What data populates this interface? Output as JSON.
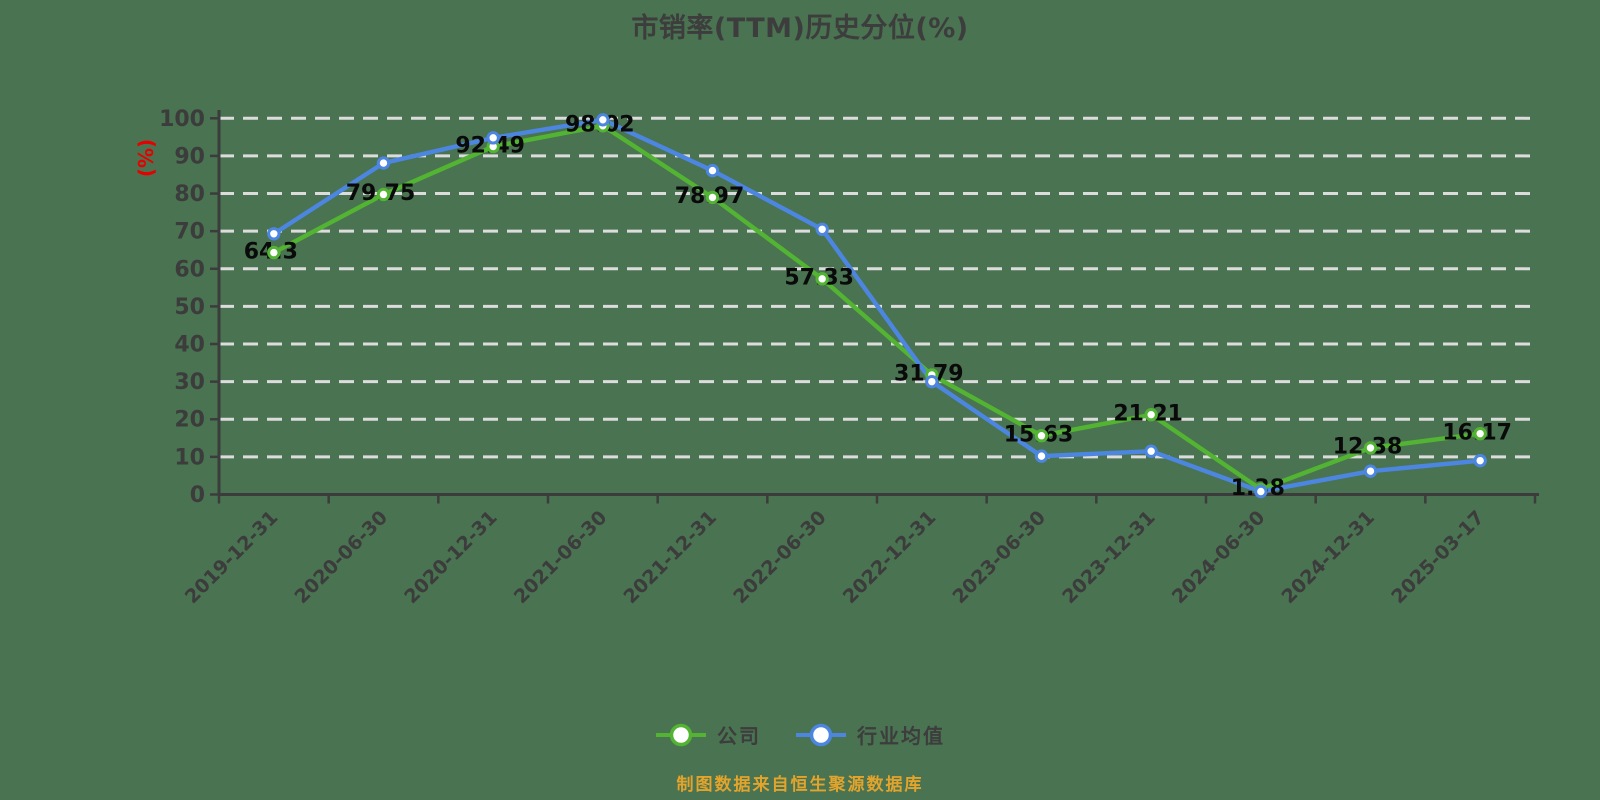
{
  "page": {
    "background_color": "#497351"
  },
  "chart_data": {
    "type": "line",
    "title": "市销率(TTM)历史分位(%)",
    "ylabel": "(%)",
    "ylabel_color": "#e60000",
    "xlabel": "",
    "ylim": [
      0,
      100
    ],
    "ytick_step": 10,
    "grid": "horizontal-white-dashed",
    "grid_color": "#dcdcdc",
    "axis_color": "#3c3c3c",
    "legend_position": "bottom",
    "marker_fill": "#ffffff",
    "categories": [
      "2019-12-31",
      "2020-06-30",
      "2020-12-31",
      "2021-06-30",
      "2021-12-31",
      "2022-06-30",
      "2022-12-31",
      "2023-06-30",
      "2023-12-31",
      "2024-06-30",
      "2024-12-31",
      "2025-03-17"
    ],
    "series": [
      {
        "name": "公司",
        "color": "#52b432",
        "values": [
          64.3,
          79.75,
          92.49,
          98.02,
          78.97,
          57.33,
          31.79,
          15.63,
          21.21,
          1.38,
          12.38,
          16.17
        ],
        "labels": [
          "64.3",
          "79.75",
          "92.49",
          "98.02",
          "78.97",
          "57.33",
          "31.79",
          "15.63",
          "21.21",
          "1.38",
          "12.38",
          "16.17"
        ],
        "show_labels": true
      },
      {
        "name": "行业均值",
        "color": "#4c86e0",
        "values": [
          69.3,
          88.1,
          94.8,
          99.6,
          86.1,
          70.5,
          30.0,
          10.2,
          11.5,
          0.8,
          6.2,
          9.0
        ],
        "labels": [],
        "show_labels": false
      }
    ]
  },
  "legend": {
    "items": [
      {
        "label": "公司"
      },
      {
        "label": "行业均值"
      }
    ]
  },
  "footer": {
    "source_note": "制图数据来自恒生聚源数据库",
    "color": "#e2a42c"
  }
}
